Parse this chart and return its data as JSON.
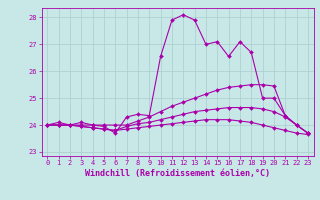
{
  "x": [
    0,
    1,
    2,
    3,
    4,
    5,
    6,
    7,
    8,
    9,
    10,
    11,
    12,
    13,
    14,
    15,
    16,
    17,
    18,
    19,
    20,
    21,
    22,
    23
  ],
  "series": [
    [
      24.0,
      24.1,
      24.0,
      24.1,
      24.0,
      23.95,
      23.7,
      24.3,
      24.4,
      24.35,
      26.55,
      27.9,
      28.1,
      27.9,
      27.0,
      27.1,
      26.55,
      27.1,
      26.7,
      25.0,
      25.0,
      24.35,
      24.0,
      23.7
    ],
    [
      24.0,
      24.0,
      24.0,
      24.0,
      24.0,
      24.0,
      24.0,
      24.0,
      24.15,
      24.3,
      24.5,
      24.7,
      24.85,
      25.0,
      25.15,
      25.3,
      25.4,
      25.45,
      25.5,
      25.5,
      25.45,
      24.35,
      24.0,
      23.7
    ],
    [
      24.0,
      24.0,
      24.0,
      23.95,
      23.9,
      23.85,
      23.8,
      23.95,
      24.05,
      24.1,
      24.2,
      24.3,
      24.4,
      24.5,
      24.55,
      24.6,
      24.65,
      24.65,
      24.65,
      24.6,
      24.5,
      24.3,
      24.0,
      23.7
    ],
    [
      24.0,
      24.0,
      24.0,
      23.95,
      23.9,
      23.85,
      23.8,
      23.85,
      23.9,
      23.95,
      24.0,
      24.05,
      24.1,
      24.15,
      24.2,
      24.2,
      24.2,
      24.15,
      24.1,
      24.0,
      23.9,
      23.8,
      23.7,
      23.65
    ]
  ],
  "color": "#aa00aa",
  "marker": "D",
  "markersize": 2.0,
  "linewidth": 0.8,
  "xlabel": "Windchill (Refroidissement éolien,°C)",
  "ylabel_ticks": [
    23,
    24,
    25,
    26,
    27,
    28
  ],
  "xticks": [
    0,
    1,
    2,
    3,
    4,
    5,
    6,
    7,
    8,
    9,
    10,
    11,
    12,
    13,
    14,
    15,
    16,
    17,
    18,
    19,
    20,
    21,
    22,
    23
  ],
  "xlim": [
    -0.5,
    23.5
  ],
  "ylim": [
    22.85,
    28.35
  ],
  "bg_color": "#c8e8e8",
  "grid_color": "#aacccc",
  "tick_fontsize": 5.0,
  "xlabel_fontsize": 6.0
}
